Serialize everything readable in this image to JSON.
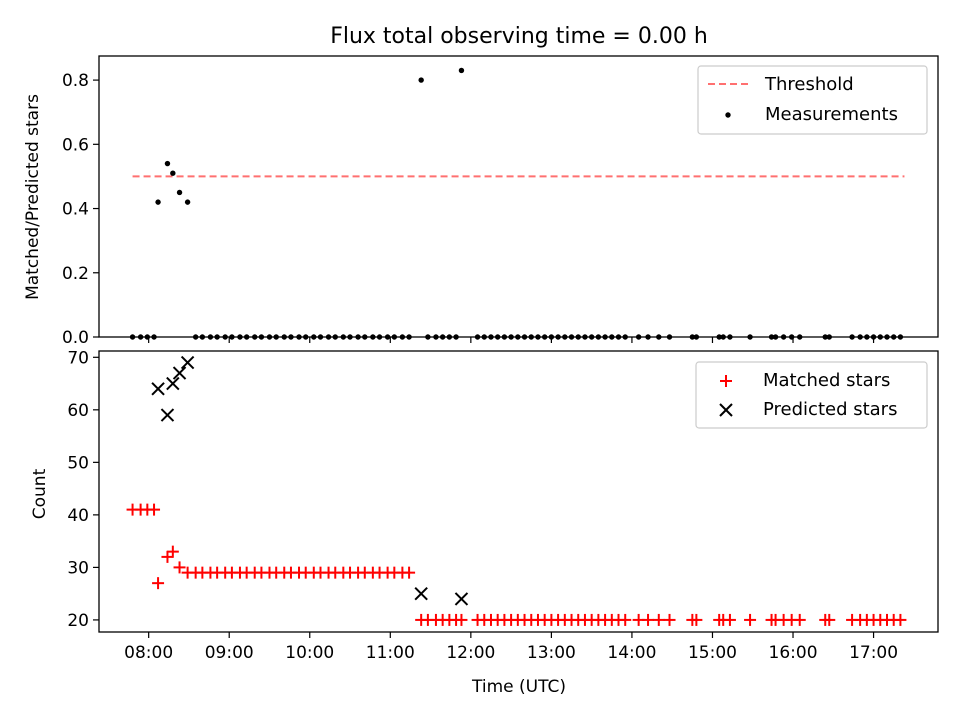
{
  "chart_data": [
    {
      "type": "scatter",
      "title": "Flux total observing time = 0.00 h",
      "ylabel": "Matched/Predicted stars",
      "xlabel": "",
      "xlim": [
        "07:23",
        "17:48"
      ],
      "ylim": [
        0,
        0.875
      ],
      "yticks": [
        0.0,
        0.2,
        0.4,
        0.6,
        0.8
      ],
      "ytick_labels": [
        "0.0",
        "0.2",
        "0.4",
        "0.6",
        "0.8"
      ],
      "grid": false,
      "legend_position": "top-right",
      "threshold": {
        "name": "Threshold",
        "value": 0.5,
        "x_start": "07:48",
        "x_end": "17:23",
        "color": "#ff7070",
        "style": "dashed"
      },
      "series": [
        {
          "name": "Measurements",
          "color": "#000000",
          "marker": "dot",
          "points": [
            [
              "08:07",
              0.42
            ],
            [
              "08:14",
              0.54
            ],
            [
              "08:18",
              0.51
            ],
            [
              "08:23",
              0.45
            ],
            [
              "08:29",
              0.42
            ],
            [
              "11:23",
              0.8
            ],
            [
              "11:53",
              0.83
            ],
            [
              "07:48",
              0.0
            ],
            [
              "07:54",
              0.0
            ],
            [
              "07:59",
              0.0
            ],
            [
              "08:04",
              0.0
            ],
            [
              "08:35",
              0.0
            ],
            [
              "08:40",
              0.0
            ],
            [
              "08:46",
              0.0
            ],
            [
              "08:51",
              0.0
            ],
            [
              "08:57",
              0.0
            ],
            [
              "09:02",
              0.0
            ],
            [
              "09:08",
              0.0
            ],
            [
              "09:13",
              0.0
            ],
            [
              "09:19",
              0.0
            ],
            [
              "09:24",
              0.0
            ],
            [
              "09:30",
              0.0
            ],
            [
              "09:35",
              0.0
            ],
            [
              "09:41",
              0.0
            ],
            [
              "09:46",
              0.0
            ],
            [
              "09:52",
              0.0
            ],
            [
              "09:57",
              0.0
            ],
            [
              "10:03",
              0.0
            ],
            [
              "10:08",
              0.0
            ],
            [
              "10:14",
              0.0
            ],
            [
              "10:19",
              0.0
            ],
            [
              "10:25",
              0.0
            ],
            [
              "10:30",
              0.0
            ],
            [
              "10:36",
              0.0
            ],
            [
              "10:41",
              0.0
            ],
            [
              "10:47",
              0.0
            ],
            [
              "10:52",
              0.0
            ],
            [
              "10:58",
              0.0
            ],
            [
              "11:03",
              0.0
            ],
            [
              "11:09",
              0.0
            ],
            [
              "11:14",
              0.0
            ],
            [
              "11:28",
              0.0
            ],
            [
              "11:34",
              0.0
            ],
            [
              "11:39",
              0.0
            ],
            [
              "11:44",
              0.0
            ],
            [
              "11:49",
              0.0
            ],
            [
              "12:05",
              0.0
            ],
            [
              "12:10",
              0.0
            ],
            [
              "12:15",
              0.0
            ],
            [
              "12:20",
              0.0
            ],
            [
              "12:25",
              0.0
            ],
            [
              "12:30",
              0.0
            ],
            [
              "12:35",
              0.0
            ],
            [
              "12:40",
              0.0
            ],
            [
              "12:45",
              0.0
            ],
            [
              "12:50",
              0.0
            ],
            [
              "12:55",
              0.0
            ],
            [
              "13:00",
              0.0
            ],
            [
              "13:05",
              0.0
            ],
            [
              "13:10",
              0.0
            ],
            [
              "13:15",
              0.0
            ],
            [
              "13:20",
              0.0
            ],
            [
              "13:25",
              0.0
            ],
            [
              "13:30",
              0.0
            ],
            [
              "13:35",
              0.0
            ],
            [
              "13:40",
              0.0
            ],
            [
              "13:45",
              0.0
            ],
            [
              "13:50",
              0.0
            ],
            [
              "13:55",
              0.0
            ],
            [
              "14:05",
              0.0
            ],
            [
              "14:12",
              0.0
            ],
            [
              "14:20",
              0.0
            ],
            [
              "14:28",
              0.0
            ],
            [
              "14:45",
              0.0
            ],
            [
              "14:48",
              0.0
            ],
            [
              "15:05",
              0.0
            ],
            [
              "15:08",
              0.0
            ],
            [
              "15:13",
              0.0
            ],
            [
              "15:28",
              0.0
            ],
            [
              "15:44",
              0.0
            ],
            [
              "15:47",
              0.0
            ],
            [
              "15:53",
              0.0
            ],
            [
              "15:59",
              0.0
            ],
            [
              "16:05",
              0.0
            ],
            [
              "16:24",
              0.0
            ],
            [
              "16:27",
              0.0
            ],
            [
              "16:44",
              0.0
            ],
            [
              "16:50",
              0.0
            ],
            [
              "16:55",
              0.0
            ],
            [
              "17:00",
              0.0
            ],
            [
              "17:05",
              0.0
            ],
            [
              "17:10",
              0.0
            ],
            [
              "17:15",
              0.0
            ],
            [
              "17:20",
              0.0
            ]
          ]
        }
      ]
    },
    {
      "type": "scatter",
      "title": "",
      "xlabel": "Time (UTC)",
      "ylabel": "Count",
      "xlim": [
        "07:23",
        "17:48"
      ],
      "ylim": [
        17.7,
        71.2
      ],
      "yticks": [
        20,
        30,
        40,
        50,
        60,
        70
      ],
      "ytick_labels": [
        "20",
        "30",
        "40",
        "50",
        "60",
        "70"
      ],
      "xticks": [
        "08:00",
        "09:00",
        "10:00",
        "11:00",
        "12:00",
        "13:00",
        "14:00",
        "15:00",
        "16:00",
        "17:00"
      ],
      "grid": false,
      "legend_position": "top-right",
      "series": [
        {
          "name": "Matched stars",
          "color": "#ff0000",
          "marker": "plus",
          "points": [
            [
              "07:48",
              41
            ],
            [
              "07:54",
              41
            ],
            [
              "07:59",
              41
            ],
            [
              "08:04",
              41
            ],
            [
              "08:07",
              27
            ],
            [
              "08:14",
              32
            ],
            [
              "08:18",
              33
            ],
            [
              "08:23",
              30
            ],
            [
              "08:29",
              29
            ],
            [
              "08:35",
              29
            ],
            [
              "08:40",
              29
            ],
            [
              "08:46",
              29
            ],
            [
              "08:51",
              29
            ],
            [
              "08:57",
              29
            ],
            [
              "09:02",
              29
            ],
            [
              "09:08",
              29
            ],
            [
              "09:13",
              29
            ],
            [
              "09:19",
              29
            ],
            [
              "09:24",
              29
            ],
            [
              "09:30",
              29
            ],
            [
              "09:35",
              29
            ],
            [
              "09:41",
              29
            ],
            [
              "09:46",
              29
            ],
            [
              "09:52",
              29
            ],
            [
              "09:57",
              29
            ],
            [
              "10:03",
              29
            ],
            [
              "10:08",
              29
            ],
            [
              "10:14",
              29
            ],
            [
              "10:19",
              29
            ],
            [
              "10:25",
              29
            ],
            [
              "10:30",
              29
            ],
            [
              "10:36",
              29
            ],
            [
              "10:41",
              29
            ],
            [
              "10:47",
              29
            ],
            [
              "10:52",
              29
            ],
            [
              "10:58",
              29
            ],
            [
              "11:03",
              29
            ],
            [
              "11:09",
              29
            ],
            [
              "11:14",
              29
            ],
            [
              "11:23",
              20
            ],
            [
              "11:28",
              20
            ],
            [
              "11:34",
              20
            ],
            [
              "11:39",
              20
            ],
            [
              "11:44",
              20
            ],
            [
              "11:49",
              20
            ],
            [
              "11:53",
              20
            ],
            [
              "12:05",
              20
            ],
            [
              "12:10",
              20
            ],
            [
              "12:15",
              20
            ],
            [
              "12:20",
              20
            ],
            [
              "12:25",
              20
            ],
            [
              "12:30",
              20
            ],
            [
              "12:35",
              20
            ],
            [
              "12:40",
              20
            ],
            [
              "12:45",
              20
            ],
            [
              "12:50",
              20
            ],
            [
              "12:55",
              20
            ],
            [
              "13:00",
              20
            ],
            [
              "13:05",
              20
            ],
            [
              "13:10",
              20
            ],
            [
              "13:15",
              20
            ],
            [
              "13:20",
              20
            ],
            [
              "13:25",
              20
            ],
            [
              "13:30",
              20
            ],
            [
              "13:35",
              20
            ],
            [
              "13:40",
              20
            ],
            [
              "13:45",
              20
            ],
            [
              "13:50",
              20
            ],
            [
              "13:55",
              20
            ],
            [
              "14:05",
              20
            ],
            [
              "14:12",
              20
            ],
            [
              "14:20",
              20
            ],
            [
              "14:28",
              20
            ],
            [
              "14:45",
              20
            ],
            [
              "14:48",
              20
            ],
            [
              "15:05",
              20
            ],
            [
              "15:08",
              20
            ],
            [
              "15:13",
              20
            ],
            [
              "15:28",
              20
            ],
            [
              "15:44",
              20
            ],
            [
              "15:47",
              20
            ],
            [
              "15:53",
              20
            ],
            [
              "15:59",
              20
            ],
            [
              "16:05",
              20
            ],
            [
              "16:24",
              20
            ],
            [
              "16:27",
              20
            ],
            [
              "16:44",
              20
            ],
            [
              "16:50",
              20
            ],
            [
              "16:55",
              20
            ],
            [
              "17:00",
              20
            ],
            [
              "17:05",
              20
            ],
            [
              "17:10",
              20
            ],
            [
              "17:15",
              20
            ],
            [
              "17:20",
              20
            ]
          ]
        },
        {
          "name": "Predicted stars",
          "color": "#000000",
          "marker": "x",
          "points": [
            [
              "08:07",
              64
            ],
            [
              "08:14",
              59
            ],
            [
              "08:18",
              65
            ],
            [
              "08:23",
              67
            ],
            [
              "08:29",
              69
            ],
            [
              "11:23",
              25
            ],
            [
              "11:53",
              24
            ]
          ]
        }
      ]
    }
  ]
}
